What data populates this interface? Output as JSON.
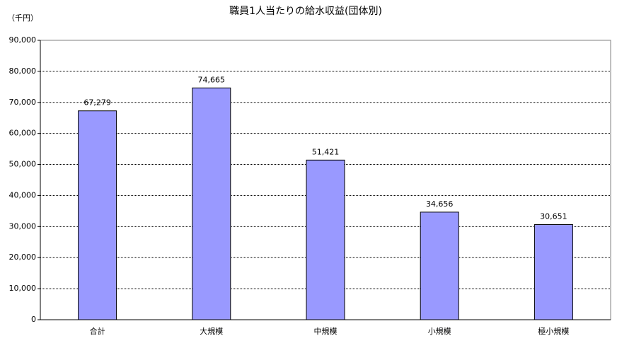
{
  "chart_data": {
    "type": "bar",
    "title": "職員1人当たりの給水収益(団体別)",
    "y_axis_label": "（千円）",
    "categories": [
      "合計",
      "大規模",
      "中規模",
      "小規模",
      "極小規模"
    ],
    "values": [
      67279,
      74665,
      51421,
      34656,
      30651
    ],
    "value_labels": [
      "67,279",
      "74,665",
      "51,421",
      "34,656",
      "30,651"
    ],
    "color": "#9999ff",
    "ylim": [
      0,
      90000
    ],
    "yticks": [
      0,
      {
        "value": 10000,
        "label": "10,000"
      },
      {
        "value": 20000,
        "label": "20,000"
      },
      {
        "value": 30000,
        "label": "30,000"
      },
      {
        "value": 40000,
        "label": "40,000"
      },
      {
        "value": 50000,
        "label": "50,000"
      },
      {
        "value": 60000,
        "label": "60,000"
      },
      {
        "value": 70000,
        "label": "70,000"
      },
      {
        "value": 80000,
        "label": "80,000"
      },
      {
        "value": 90000,
        "label": "90,000"
      }
    ],
    "grid": true
  }
}
